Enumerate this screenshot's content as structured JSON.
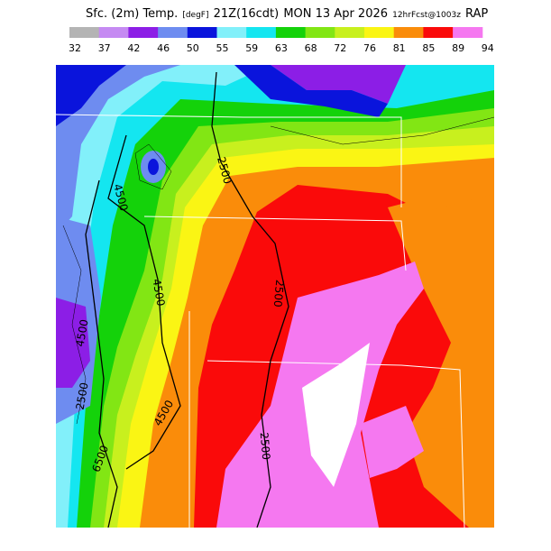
{
  "header": {
    "title": "Sfc. (2m) Temp.",
    "units": "[degF]",
    "time": "21Z(16cdt)",
    "date": "MON 13 Apr 2026",
    "forecast": "12hrFcst@1003z",
    "model": "RAP"
  },
  "colorbar": {
    "colors": [
      "#b4b4b4",
      "#c58af2",
      "#8c1ee6",
      "#6e8cf0",
      "#0a14dc",
      "#82f0fa",
      "#14e6f0",
      "#14d20a",
      "#82e614",
      "#c8f01e",
      "#faf514",
      "#fa8c0a",
      "#fa0a0a",
      "#f578f0"
    ],
    "labels": [
      "32",
      "37",
      "42",
      "46",
      "50",
      "55",
      "59",
      "63",
      "68",
      "72",
      "76",
      "81",
      "85",
      "89",
      "94"
    ]
  },
  "contour_labels": [
    "2500",
    "4500",
    "4500",
    "2500",
    "2500",
    "4500",
    "4500",
    "2500",
    "6500"
  ]
}
